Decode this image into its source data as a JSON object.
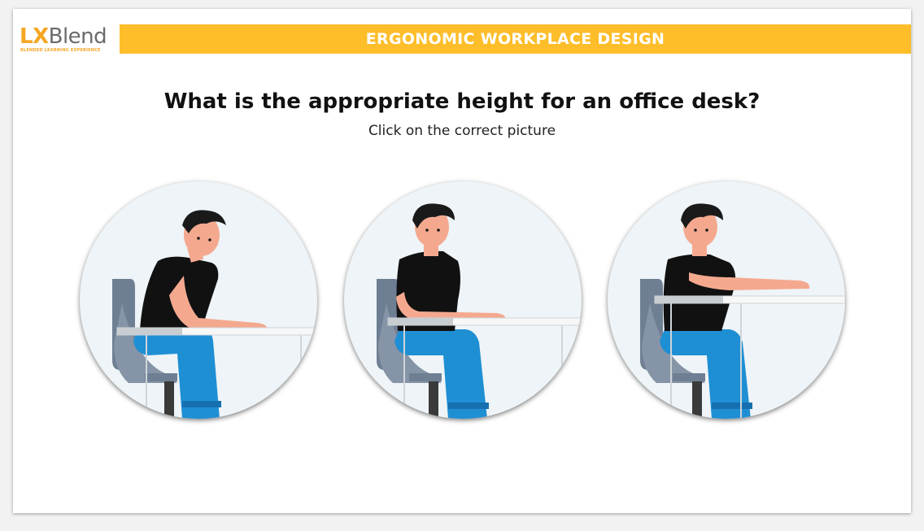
{
  "logo": {
    "lx": "LX",
    "blend": "Blend",
    "tagline": "BLENDED LEARNING EXPERIENCE"
  },
  "header": {
    "title": "ERGONOMIC WORKPLACE DESIGN"
  },
  "question": {
    "text": "What is the appropriate height for an office desk?",
    "instruction": "Click on the correct picture"
  },
  "choices": [
    {
      "desk_height": "low"
    },
    {
      "desk_height": "medium"
    },
    {
      "desk_height": "high"
    }
  ],
  "colors": {
    "header_bar": "#fdbe2a",
    "logo_accent": "#f5a623",
    "shirt": "#111111",
    "pants": "#1f8fd4",
    "skin": "#f4a98f",
    "hair": "#1a1a1a",
    "chair": "#6f7f93",
    "desk": "#f7f7f7",
    "circle_bg": "#eef4f7"
  }
}
